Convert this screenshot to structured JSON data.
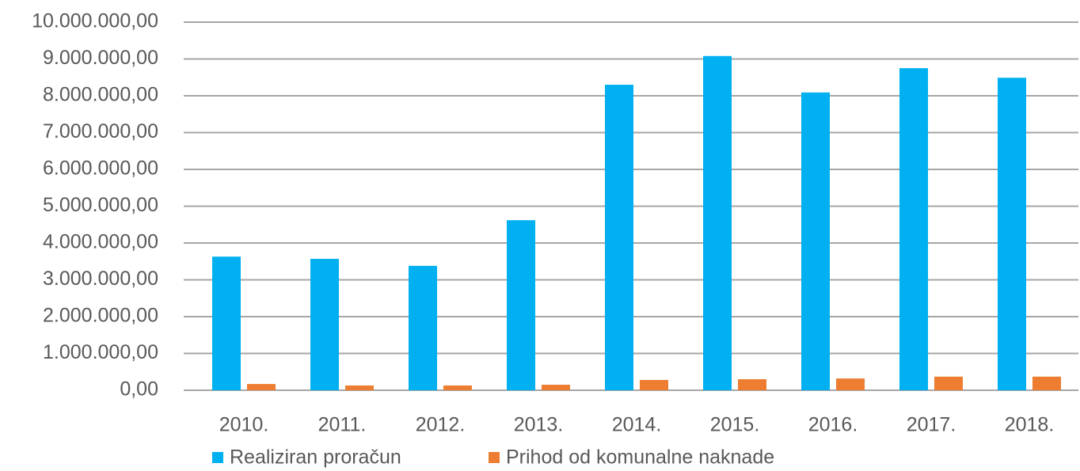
{
  "chart_data": {
    "type": "bar",
    "categories": [
      "2010.",
      "2011.",
      "2012.",
      "2013.",
      "2014.",
      "2015.",
      "2016.",
      "2017.",
      "2018."
    ],
    "series": [
      {
        "name": "Realiziran proračun",
        "color": "#00b0f0",
        "values": [
          3630000,
          3570000,
          3380000,
          4620000,
          8300000,
          9080000,
          8090000,
          8750000,
          8490000
        ]
      },
      {
        "name": "Prihod od komunalne naknade",
        "color": "#ed7d31",
        "values": [
          170000,
          130000,
          130000,
          150000,
          280000,
          300000,
          320000,
          370000,
          370000
        ]
      }
    ],
    "ylim": [
      0,
      10000000
    ],
    "yticks": [
      {
        "value": 0,
        "label": "0,00"
      },
      {
        "value": 1000000,
        "label": "1.000.000,00"
      },
      {
        "value": 2000000,
        "label": "2.000.000,00"
      },
      {
        "value": 3000000,
        "label": "3.000.000,00"
      },
      {
        "value": 4000000,
        "label": "4.000.000,00"
      },
      {
        "value": 5000000,
        "label": "5.000.000,00"
      },
      {
        "value": 6000000,
        "label": "6.000.000,00"
      },
      {
        "value": 7000000,
        "label": "7.000.000,00"
      },
      {
        "value": 8000000,
        "label": "8.000.000,00"
      },
      {
        "value": 9000000,
        "label": "9.000.000,00"
      },
      {
        "value": 10000000,
        "label": "10.000.000,00"
      }
    ],
    "grid": true,
    "legend": "bottom"
  }
}
